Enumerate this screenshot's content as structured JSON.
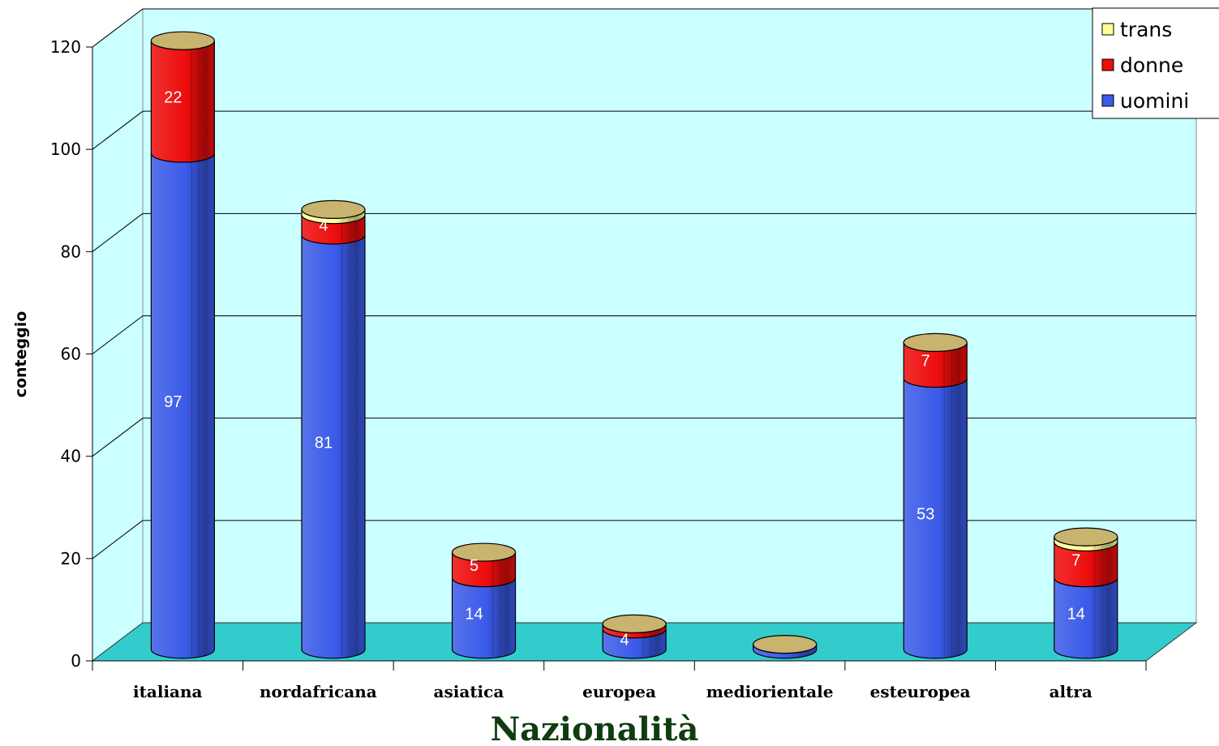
{
  "chart_data": {
    "type": "bar",
    "stacked": true,
    "three_d": true,
    "categories": [
      "italiana",
      "nordafricana",
      "asiatica",
      "europea",
      "mediorientale",
      "esteuropea",
      "altra"
    ],
    "series": [
      {
        "name": "uomini",
        "values": [
          97,
          81,
          14,
          4,
          1,
          53,
          14
        ],
        "color": "#3a5ae8",
        "labels": [
          "97",
          "81",
          "14",
          "4",
          "",
          "53",
          "14"
        ]
      },
      {
        "name": "donne",
        "values": [
          22,
          4,
          5,
          1,
          0,
          7,
          7
        ],
        "color": "#ee0c0c",
        "labels": [
          "22",
          "4",
          "5",
          "",
          "",
          "7",
          "7"
        ]
      },
      {
        "name": "trans",
        "values": [
          0,
          1,
          0,
          0,
          0,
          0,
          1
        ],
        "color": "#ffff99",
        "labels": [
          "",
          "",
          "",
          "",
          "",
          "",
          ""
        ]
      }
    ],
    "xlabel": "Nazionalità",
    "ylabel": "conteggio",
    "ylim": [
      0,
      120
    ],
    "yticks": [
      "0",
      "20",
      "40",
      "60",
      "80",
      "100",
      "120"
    ],
    "legend_position": "top-right",
    "legend_order": [
      "trans",
      "donne",
      "uomini"
    ],
    "background_colors": {
      "wall": "#ccffff",
      "floor": "#33cccc",
      "cap": "#c8b46e"
    }
  }
}
